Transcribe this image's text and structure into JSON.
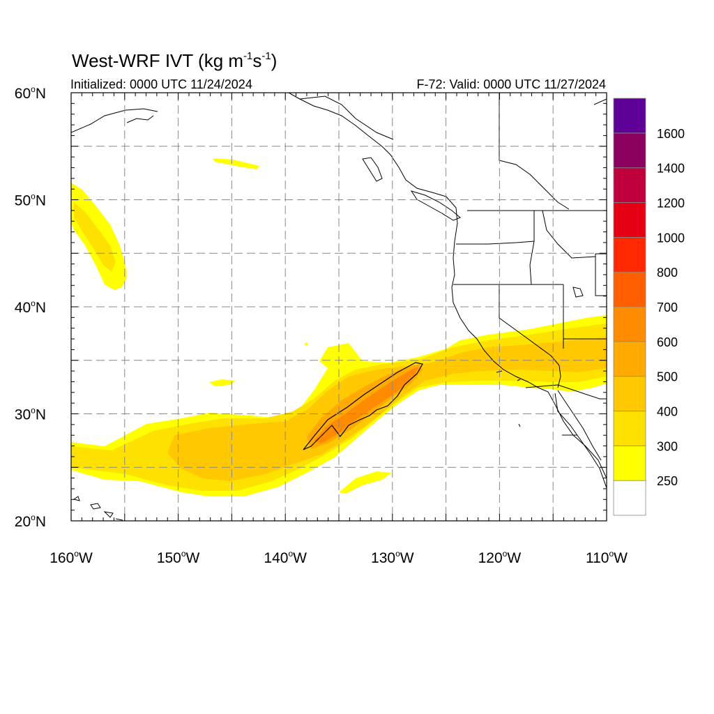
{
  "header": {
    "title_main": "West-WRF IVT (kg m",
    "title_exp1": "-1",
    "title_mid": "s",
    "title_exp2": "-1",
    "title_end": ")",
    "initialized": "Initialized: 0000 UTC 11/24/2024",
    "valid": "F-72: Valid: 0000 UTC 11/27/2024"
  },
  "axes": {
    "lon_min": -160,
    "lon_max": -110,
    "lat_min": 20,
    "lat_max": 60,
    "lat_ticks": [
      {
        "value": 60,
        "num": "60",
        "hemi": "N"
      },
      {
        "value": 50,
        "num": "50",
        "hemi": "N"
      },
      {
        "value": 40,
        "num": "40",
        "hemi": "N"
      },
      {
        "value": 30,
        "num": "30",
        "hemi": "N"
      },
      {
        "value": 20,
        "num": "20",
        "hemi": "N"
      }
    ],
    "lon_ticks": [
      {
        "value": -160,
        "num": "160",
        "hemi": "W"
      },
      {
        "value": -150,
        "num": "150",
        "hemi": "W"
      },
      {
        "value": -140,
        "num": "140",
        "hemi": "W"
      },
      {
        "value": -130,
        "num": "130",
        "hemi": "W"
      },
      {
        "value": -120,
        "num": "120",
        "hemi": "W"
      },
      {
        "value": -110,
        "num": "110",
        "hemi": "W"
      }
    ],
    "grid_lat": [
      25,
      30,
      35,
      40,
      45,
      50,
      55
    ],
    "grid_lon": [
      -155,
      -150,
      -145,
      -140,
      -135,
      -130,
      -125,
      -120,
      -115
    ],
    "grid_style": "dashed gray"
  },
  "colorbar": {
    "levels": [
      "250",
      "300",
      "400",
      "500",
      "600",
      "700",
      "800",
      "1000",
      "1200",
      "1400",
      "1600"
    ],
    "colors": [
      "#ffffff",
      "#ffff00",
      "#ffe100",
      "#ffc800",
      "#ffaa00",
      "#ff8c00",
      "#ff5f00",
      "#ff2800",
      "#e60014",
      "#c0003c",
      "#8c005f",
      "#5f0096"
    ]
  },
  "ivt_colors": {
    "c250": "#ffff00",
    "c300": "#ffe100",
    "c400": "#ffc800",
    "c500": "#ffaa00",
    "c600": "#ff8c00"
  }
}
